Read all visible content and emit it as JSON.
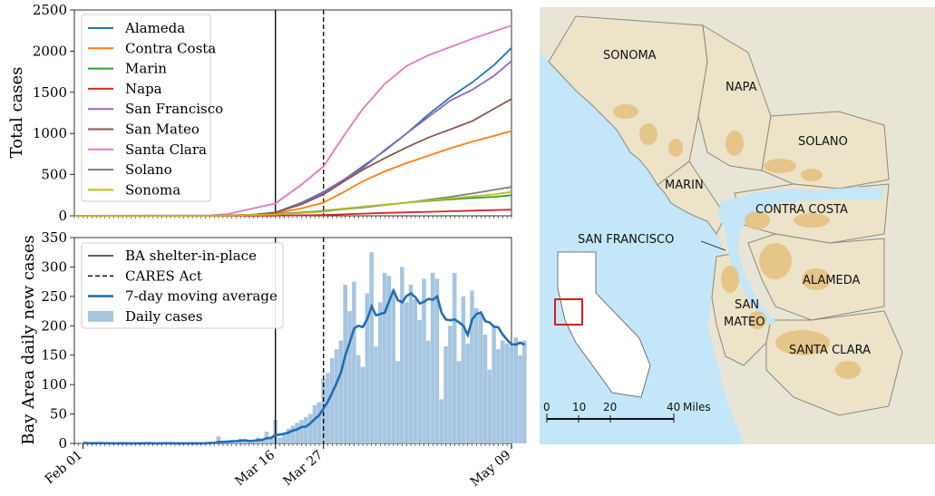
{
  "chart_data": [
    {
      "type": "line",
      "ylabel": "Total cases",
      "ylim": [
        0,
        2500
      ],
      "yticks": [
        0,
        500,
        1000,
        1500,
        2000,
        2500
      ],
      "xlim": [
        "2020-01-30",
        "2020-05-09"
      ],
      "legend": "top-left",
      "vlines": [
        {
          "date": "2020-03-16",
          "style": "solid"
        },
        {
          "date": "2020-03-27",
          "style": "dashed"
        }
      ],
      "series": [
        {
          "name": "Alameda",
          "color": "#1f77b4",
          "points": [
            [
              "2020-03-01",
              0
            ],
            [
              "2020-03-10",
              5
            ],
            [
              "2020-03-16",
              40
            ],
            [
              "2020-03-22",
              160
            ],
            [
              "2020-03-27",
              290
            ],
            [
              "2020-04-01",
              450
            ],
            [
              "2020-04-05",
              600
            ],
            [
              "2020-04-10",
              790
            ],
            [
              "2020-04-15",
              1000
            ],
            [
              "2020-04-20",
              1230
            ],
            [
              "2020-04-25",
              1440
            ],
            [
              "2020-04-30",
              1620
            ],
            [
              "2020-05-05",
              1830
            ],
            [
              "2020-05-09",
              2040
            ]
          ]
        },
        {
          "name": "Contra Costa",
          "color": "#ff7f0e",
          "points": [
            [
              "2020-03-01",
              0
            ],
            [
              "2020-03-10",
              5
            ],
            [
              "2020-03-16",
              30
            ],
            [
              "2020-03-22",
              90
            ],
            [
              "2020-03-27",
              160
            ],
            [
              "2020-04-01",
              300
            ],
            [
              "2020-04-05",
              420
            ],
            [
              "2020-04-10",
              540
            ],
            [
              "2020-04-15",
              640
            ],
            [
              "2020-04-20",
              730
            ],
            [
              "2020-04-25",
              820
            ],
            [
              "2020-04-30",
              900
            ],
            [
              "2020-05-05",
              970
            ],
            [
              "2020-05-09",
              1030
            ]
          ]
        },
        {
          "name": "Marin",
          "color": "#2ca02c",
          "points": [
            [
              "2020-03-01",
              0
            ],
            [
              "2020-03-16",
              20
            ],
            [
              "2020-03-27",
              60
            ],
            [
              "2020-04-05",
              110
            ],
            [
              "2020-04-15",
              160
            ],
            [
              "2020-04-25",
              200
            ],
            [
              "2020-05-05",
              230
            ],
            [
              "2020-05-09",
              250
            ]
          ]
        },
        {
          "name": "Napa",
          "color": "#d62728",
          "points": [
            [
              "2020-03-01",
              0
            ],
            [
              "2020-03-16",
              2
            ],
            [
              "2020-03-27",
              10
            ],
            [
              "2020-04-10",
              35
            ],
            [
              "2020-04-25",
              55
            ],
            [
              "2020-05-09",
              75
            ]
          ]
        },
        {
          "name": "San Francisco",
          "color": "#9467bd",
          "points": [
            [
              "2020-03-01",
              0
            ],
            [
              "2020-03-10",
              10
            ],
            [
              "2020-03-16",
              40
            ],
            [
              "2020-03-22",
              150
            ],
            [
              "2020-03-27",
              280
            ],
            [
              "2020-04-01",
              450
            ],
            [
              "2020-04-05",
              580
            ],
            [
              "2020-04-10",
              800
            ],
            [
              "2020-04-15",
              1000
            ],
            [
              "2020-04-20",
              1200
            ],
            [
              "2020-04-25",
              1400
            ],
            [
              "2020-04-30",
              1530
            ],
            [
              "2020-05-05",
              1700
            ],
            [
              "2020-05-09",
              1880
            ]
          ]
        },
        {
          "name": "San Mateo",
          "color": "#8c564b",
          "points": [
            [
              "2020-03-01",
              0
            ],
            [
              "2020-03-10",
              10
            ],
            [
              "2020-03-16",
              40
            ],
            [
              "2020-03-22",
              140
            ],
            [
              "2020-03-27",
              260
            ],
            [
              "2020-04-01",
              430
            ],
            [
              "2020-04-05",
              560
            ],
            [
              "2020-04-10",
              700
            ],
            [
              "2020-04-15",
              830
            ],
            [
              "2020-04-20",
              950
            ],
            [
              "2020-04-25",
              1050
            ],
            [
              "2020-04-30",
              1150
            ],
            [
              "2020-05-05",
              1300
            ],
            [
              "2020-05-09",
              1420
            ]
          ]
        },
        {
          "name": "Santa Clara",
          "color": "#e377c2",
          "points": [
            [
              "2020-02-01",
              1
            ],
            [
              "2020-03-01",
              5
            ],
            [
              "2020-03-05",
              20
            ],
            [
              "2020-03-10",
              80
            ],
            [
              "2020-03-16",
              150
            ],
            [
              "2020-03-22",
              380
            ],
            [
              "2020-03-27",
              600
            ],
            [
              "2020-04-01",
              1000
            ],
            [
              "2020-04-05",
              1300
            ],
            [
              "2020-04-10",
              1600
            ],
            [
              "2020-04-15",
              1820
            ],
            [
              "2020-04-20",
              1950
            ],
            [
              "2020-04-25",
              2050
            ],
            [
              "2020-04-30",
              2150
            ],
            [
              "2020-05-05",
              2240
            ],
            [
              "2020-05-09",
              2310
            ]
          ]
        },
        {
          "name": "Solano",
          "color": "#7f7f7f",
          "points": [
            [
              "2020-03-01",
              0
            ],
            [
              "2020-03-16",
              20
            ],
            [
              "2020-03-27",
              55
            ],
            [
              "2020-04-05",
              100
            ],
            [
              "2020-04-15",
              160
            ],
            [
              "2020-04-25",
              230
            ],
            [
              "2020-05-01",
              280
            ],
            [
              "2020-05-09",
              350
            ]
          ]
        },
        {
          "name": "Sonoma",
          "color": "#bcbd22",
          "points": [
            [
              "2020-03-01",
              0
            ],
            [
              "2020-03-16",
              15
            ],
            [
              "2020-03-27",
              50
            ],
            [
              "2020-04-05",
              110
            ],
            [
              "2020-04-15",
              160
            ],
            [
              "2020-04-25",
              210
            ],
            [
              "2020-05-05",
              260
            ],
            [
              "2020-05-09",
              290
            ]
          ]
        }
      ]
    },
    {
      "type": "bar",
      "ylabel": "Bay Area daily new cases",
      "ylim": [
        0,
        350
      ],
      "yticks": [
        0,
        50,
        100,
        150,
        200,
        250,
        300,
        350
      ],
      "xlim": [
        "2020-01-30",
        "2020-05-09"
      ],
      "xticks": [
        "Feb 01",
        "Mar 16",
        "Mar 27",
        "May 09"
      ],
      "xtick_dates": [
        "2020-02-01",
        "2020-03-16",
        "2020-03-27",
        "2020-05-09"
      ],
      "legend": "top-left",
      "legend_entries": [
        {
          "label": "BA shelter-in-place",
          "kind": "solid-line"
        },
        {
          "label": "CARES Act",
          "kind": "dashed-line"
        },
        {
          "label": "7-day moving average",
          "kind": "thick-line"
        },
        {
          "label": "Daily cases",
          "kind": "bar"
        }
      ],
      "bar_color": "#a6c6e0",
      "average_color": "#1f6fb4",
      "start_date": "2020-02-01",
      "daily_cases": [
        1,
        0,
        0,
        1,
        0,
        0,
        0,
        0,
        0,
        1,
        0,
        0,
        0,
        0,
        1,
        0,
        0,
        0,
        0,
        1,
        0,
        0,
        0,
        0,
        0,
        1,
        0,
        0,
        1,
        2,
        1,
        12,
        2,
        3,
        5,
        1,
        8,
        6,
        4,
        5,
        10,
        8,
        20,
        12,
        40,
        10,
        15,
        25,
        30,
        35,
        40,
        45,
        50,
        65,
        70,
        110,
        120,
        145,
        160,
        175,
        270,
        225,
        275,
        150,
        130,
        255,
        325,
        165,
        240,
        290,
        285,
        260,
        140,
        300,
        240,
        270,
        245,
        210,
        280,
        175,
        290,
        280,
        75,
        165,
        200,
        290,
        140,
        250,
        170,
        260,
        230,
        220,
        185,
        125,
        200,
        160,
        175,
        170,
        165,
        180,
        150,
        175
      ]
    }
  ],
  "map": {
    "labels": {
      "sonoma": "SONOMA",
      "napa": "NAPA",
      "solano": "SOLANO",
      "marin": "MARIN",
      "contra_costa": "CONTRA COSTA",
      "san_francisco": "SAN FRANCISCO",
      "alameda": "ALAMEDA",
      "san_mateo_1": "SAN",
      "san_mateo_2": "MATEO",
      "santa_clara": "SANTA CLARA"
    },
    "scale": {
      "t0": "0",
      "t10": "10",
      "t20": "20",
      "t40": "40",
      "unit": "Miles"
    },
    "colors": {
      "water": "#c3e6f8",
      "land": "#e8e4d6",
      "county": "#ece3c9",
      "urban": "#e6c283"
    }
  }
}
